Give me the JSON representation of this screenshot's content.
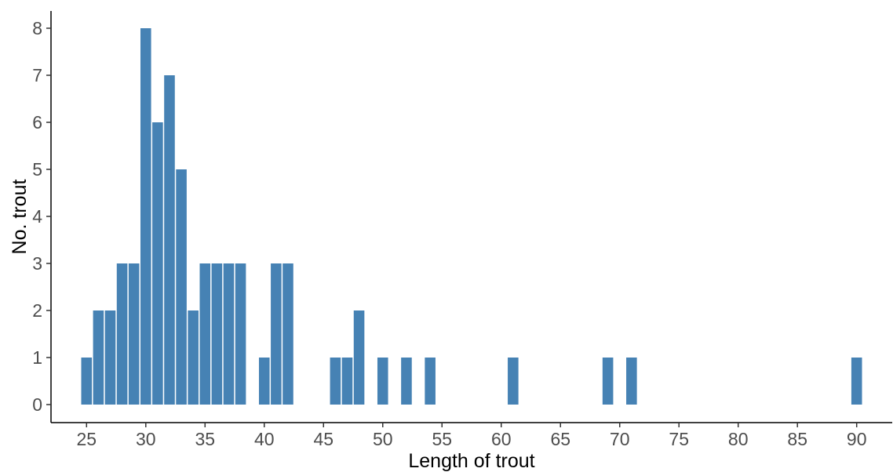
{
  "chart_data": {
    "type": "bar",
    "title": "",
    "xlabel": "Length of trout",
    "ylabel": "No. trout",
    "x": [
      25,
      26,
      27,
      28,
      29,
      30,
      31,
      32,
      33,
      34,
      35,
      36,
      37,
      38,
      40,
      41,
      42,
      46,
      47,
      48,
      50,
      52,
      54,
      61,
      69,
      71,
      90
    ],
    "values": [
      1,
      2,
      2,
      3,
      3,
      8,
      6,
      7,
      5,
      2,
      3,
      3,
      3,
      3,
      1,
      3,
      3,
      1,
      1,
      2,
      1,
      1,
      1,
      1,
      1,
      1,
      1
    ],
    "xlim": [
      22,
      93
    ],
    "ylim": [
      0,
      8
    ],
    "x_ticks": [
      "25",
      "30",
      "35",
      "40",
      "45",
      "50",
      "55",
      "60",
      "65",
      "70",
      "75",
      "80",
      "85",
      "90"
    ],
    "y_ticks": [
      "0",
      "1",
      "2",
      "3",
      "4",
      "5",
      "6",
      "7",
      "8"
    ],
    "bar_color": "#4682B4",
    "grid": false,
    "legend": "none"
  }
}
